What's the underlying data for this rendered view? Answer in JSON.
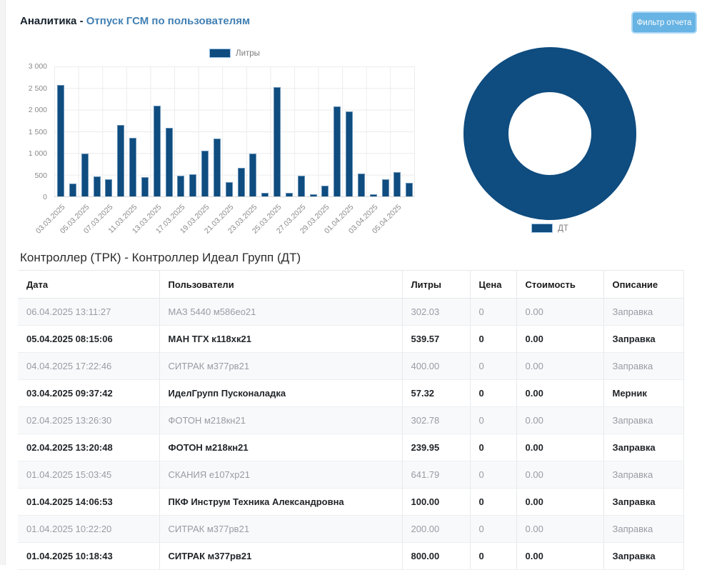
{
  "header": {
    "title_prefix": "Аналитика -",
    "title": "Отпуск ГСМ по пользователям",
    "filter_button_label": "Фильтр отчета"
  },
  "colors": {
    "primary_blue": "#0f4c7f",
    "button_blue": "#67b3e3",
    "title_blue": "#4280b3"
  },
  "chart_data": [
    {
      "type": "bar",
      "title": "",
      "legend": "Литры",
      "xlabel": "",
      "ylabel": "",
      "ylim": [
        0,
        3000
      ],
      "grid": true,
      "legend_position": "top",
      "ytick_labels": [
        "0",
        "500",
        "1 000",
        "1 500",
        "2 000",
        "2 500",
        "3 000"
      ],
      "xtick_labels": [
        "03.03.2025",
        "05.03.2025",
        "07.03.2025",
        "11.03.2025",
        "13.03.2025",
        "17.03.2025",
        "19.03.2025",
        "21.03.2025",
        "23.03.2025",
        "25.03.2025",
        "27.03.2025",
        "29.03.2025",
        "01.04.2025",
        "03.04.2025",
        "05.04.2025"
      ],
      "xticks_every_n_bars": 2,
      "values": [
        2550,
        295,
        985,
        455,
        390,
        1640,
        1340,
        435,
        2090,
        1570,
        480,
        500,
        1050,
        1330,
        325,
        660,
        985,
        85,
        2500,
        90,
        480,
        55,
        240,
        2070,
        1950,
        530,
        50,
        400,
        550,
        310
      ]
    },
    {
      "type": "pie",
      "subtype": "donut",
      "legend": "ДТ",
      "legend_position": "bottom",
      "slices": [
        {
          "label": "ДТ",
          "value": 100
        }
      ]
    }
  ],
  "table_section": {
    "title": "Контроллер (ТРК) - Контроллер Идеал Групп (ДТ)",
    "columns": [
      "Дата",
      "Пользователи",
      "Литры",
      "Цена",
      "Стоимость",
      "Описание"
    ],
    "rows": [
      [
        "06.04.2025 13:11:27",
        "МАЗ 5440 м586ео21",
        "302.03",
        "0",
        "0.00",
        "Заправка"
      ],
      [
        "05.04.2025 08:15:06",
        "МАН ТГХ к118хк21",
        "539.57",
        "0",
        "0.00",
        "Заправка"
      ],
      [
        "04.04.2025 17:22:46",
        "СИТРАК м377рв21",
        "400.00",
        "0",
        "0.00",
        "Заправка"
      ],
      [
        "03.04.2025 09:37:42",
        "ИделГрупп Пусконаладка",
        "57.32",
        "0",
        "0.00",
        "Мерник"
      ],
      [
        "02.04.2025 13:26:30",
        "ФОТОН м218кн21",
        "302.78",
        "0",
        "0.00",
        "Заправка"
      ],
      [
        "02.04.2025 13:20:48",
        "ФОТОН м218кн21",
        "239.95",
        "0",
        "0.00",
        "Заправка"
      ],
      [
        "01.04.2025 15:03:45",
        "СКАНИЯ е107хр21",
        "641.79",
        "0",
        "0.00",
        "Заправка"
      ],
      [
        "01.04.2025 14:06:53",
        "ПКФ Инструм Техника Александровна",
        "100.00",
        "0",
        "0.00",
        "Заправка"
      ],
      [
        "01.04.2025 10:22:20",
        "СИТРАК м377рв21",
        "200.00",
        "0",
        "0.00",
        "Заправка"
      ],
      [
        "01.04.2025 10:18:43",
        "СИТРАК м377рв21",
        "800.00",
        "0",
        "0.00",
        "Заправка"
      ]
    ]
  }
}
